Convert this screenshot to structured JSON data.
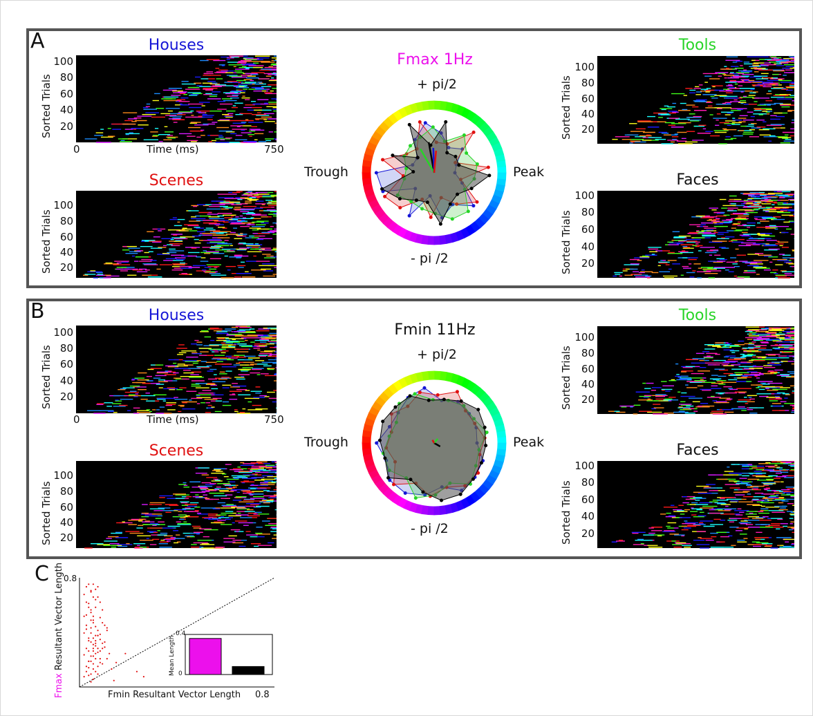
{
  "panel_letters": {
    "a": "A",
    "b": "B",
    "c": "C"
  },
  "colors": {
    "houses": "#1515d6",
    "scenes": "#e01010",
    "tools": "#27d427",
    "faces": "#000000",
    "fmax": "#ec10ec",
    "bar_fmin": "#000000",
    "scatter": "#e21111"
  },
  "raster": {
    "ylabel": "Sorted Trials",
    "xlabel": "Time (ms)",
    "x0": "0",
    "x1": "750",
    "yticks": [
      "100",
      "80",
      "60",
      "40",
      "20"
    ]
  },
  "panel_a": {
    "polar_title": "Fmax 1Hz",
    "top_label": "+ pi/2",
    "bottom_label": "- pi /2",
    "left_label": "Trough",
    "right_label": "Peak",
    "titles": {
      "houses": "Houses",
      "scenes": "Scenes",
      "tools": "Tools",
      "faces": "Faces"
    }
  },
  "panel_b": {
    "polar_title": "Fmin 11Hz",
    "top_label": "+ pi/2",
    "bottom_label": "- pi /2",
    "left_label": "Trough",
    "right_label": "Peak",
    "titles": {
      "houses": "Houses",
      "scenes": "Scenes",
      "tools": "Tools",
      "faces": "Faces"
    }
  },
  "chart_data": [
    {
      "type": "scatter",
      "xlabel": "Fmin Resultant Vector Length",
      "ylabel_prefix": "Fmax",
      "ylabel": "Resultant Vector Length",
      "xtick_label": "0.8",
      "ytick_label": "0.8",
      "xlim": [
        0,
        0.85
      ],
      "ylim": [
        0,
        0.85
      ],
      "reference_line": "y = x (dotted)",
      "points_x": [
        0.02,
        0.03,
        0.04,
        0.05,
        0.06,
        0.07,
        0.02,
        0.03,
        0.04,
        0.05,
        0.06,
        0.07,
        0.08,
        0.09,
        0.1,
        0.03,
        0.04,
        0.05,
        0.06,
        0.07,
        0.08,
        0.02,
        0.03,
        0.05,
        0.06,
        0.08,
        0.1,
        0.12,
        0.04,
        0.05,
        0.06,
        0.07,
        0.09,
        0.11,
        0.02,
        0.03,
        0.05,
        0.07,
        0.08,
        0.1,
        0.04,
        0.05,
        0.06,
        0.08,
        0.09,
        0.11,
        0.13,
        0.03,
        0.04,
        0.06,
        0.07,
        0.09,
        0.02,
        0.04,
        0.05,
        0.07,
        0.1,
        0.12,
        0.03,
        0.05,
        0.06,
        0.08,
        0.04,
        0.06,
        0.07,
        0.09,
        0.11,
        0.05,
        0.06,
        0.08,
        0.03,
        0.04,
        0.07,
        0.09,
        0.06,
        0.08,
        0.1,
        0.04,
        0.05,
        0.07,
        0.05,
        0.06,
        0.08,
        0.06,
        0.07,
        0.09,
        0.12,
        0.14,
        0.16,
        0.2,
        0.15,
        0.25,
        0.28
      ],
      "points_y": [
        0.08,
        0.12,
        0.15,
        0.1,
        0.18,
        0.22,
        0.25,
        0.3,
        0.2,
        0.35,
        0.28,
        0.32,
        0.4,
        0.22,
        0.3,
        0.45,
        0.38,
        0.42,
        0.5,
        0.36,
        0.44,
        0.55,
        0.48,
        0.6,
        0.52,
        0.4,
        0.34,
        0.46,
        0.65,
        0.58,
        0.7,
        0.62,
        0.54,
        0.48,
        0.72,
        0.66,
        0.75,
        0.68,
        0.78,
        0.6,
        0.28,
        0.24,
        0.33,
        0.27,
        0.37,
        0.31,
        0.26,
        0.16,
        0.2,
        0.14,
        0.26,
        0.19,
        0.42,
        0.36,
        0.46,
        0.4,
        0.5,
        0.44,
        0.56,
        0.52,
        0.38,
        0.3,
        0.62,
        0.55,
        0.47,
        0.41,
        0.35,
        0.74,
        0.8,
        0.7,
        0.78,
        0.8,
        0.76,
        0.66,
        0.06,
        0.1,
        0.18,
        0.09,
        0.04,
        0.12,
        0.2,
        0.24,
        0.16,
        0.3,
        0.34,
        0.28,
        0.22,
        0.14,
        0.19,
        0.26,
        0.05,
        0.12,
        0.08
      ]
    },
    {
      "type": "bar",
      "ylabel": "Mean Length",
      "ytick_labels": [
        "0.4",
        "0"
      ],
      "ylim": [
        0,
        0.4
      ],
      "categories": [
        "Fmax",
        "Fmin"
      ],
      "values": [
        0.36,
        0.08
      ]
    }
  ]
}
